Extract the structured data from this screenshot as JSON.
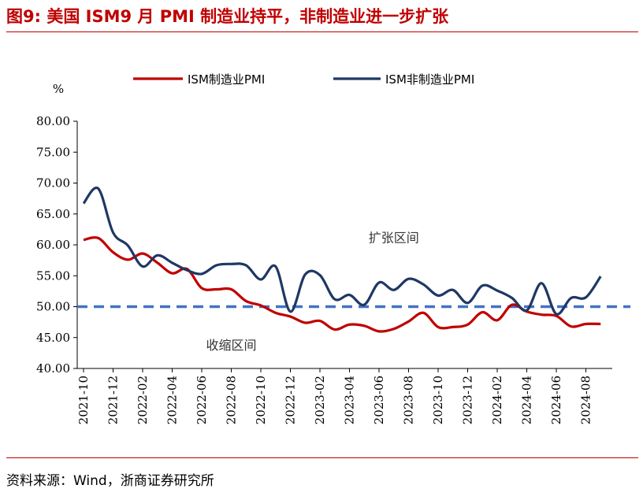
{
  "header": {
    "title": "图9:  美国 ISM9 月 PMI 制造业持平，非制造业进一步扩张"
  },
  "footer": {
    "source": "资料来源：Wind，浙商证券研究所"
  },
  "colors": {
    "title": "#c00000",
    "manufacturing": "#c00000",
    "non_manufacturing": "#1f3864",
    "threshold": "#4472c4"
  },
  "chart_data": {
    "type": "line",
    "title": "",
    "ylabel": "%",
    "xlabel": "",
    "ylim": [
      40,
      80
    ],
    "yticks": [
      "40.00",
      "45.00",
      "50.00",
      "55.00",
      "60.00",
      "65.00",
      "70.00",
      "75.00",
      "80.00"
    ],
    "x_tick_labels": [
      "2021-10",
      "2021-12",
      "2022-02",
      "2022-04",
      "2022-06",
      "2022-08",
      "2022-10",
      "2022-12",
      "2023-02",
      "2023-04",
      "2023-06",
      "2023-08",
      "2023-10",
      "2023-12",
      "2024-02",
      "2024-04",
      "2024-06",
      "2024-08"
    ],
    "x": [
      "2021-10",
      "2021-11",
      "2021-12",
      "2022-01",
      "2022-02",
      "2022-03",
      "2022-04",
      "2022-05",
      "2022-06",
      "2022-07",
      "2022-08",
      "2022-09",
      "2022-10",
      "2022-11",
      "2022-12",
      "2023-01",
      "2023-02",
      "2023-03",
      "2023-04",
      "2023-05",
      "2023-06",
      "2023-07",
      "2023-08",
      "2023-09",
      "2023-10",
      "2023-11",
      "2023-12",
      "2024-01",
      "2024-02",
      "2024-03",
      "2024-04",
      "2024-05",
      "2024-06",
      "2024-07",
      "2024-08",
      "2024-09"
    ],
    "series": [
      {
        "name": "ISM制造业PMI",
        "color": "#c00000",
        "values": [
          60.8,
          61.1,
          58.8,
          57.6,
          58.6,
          57.1,
          55.4,
          56.1,
          53.0,
          52.8,
          52.8,
          50.9,
          50.2,
          49.0,
          48.4,
          47.4,
          47.7,
          46.3,
          47.1,
          46.9,
          46.0,
          46.4,
          47.6,
          49.0,
          46.7,
          46.7,
          47.1,
          49.1,
          47.8,
          50.3,
          49.2,
          48.7,
          48.5,
          46.8,
          47.2,
          47.2
        ]
      },
      {
        "name": "ISM非制造业PMI",
        "color": "#1f3864",
        "values": [
          66.7,
          69.1,
          62.0,
          59.9,
          56.5,
          58.3,
          57.1,
          55.9,
          55.3,
          56.7,
          56.9,
          56.7,
          54.4,
          56.5,
          49.2,
          55.2,
          55.1,
          51.2,
          51.9,
          50.3,
          53.9,
          52.7,
          54.5,
          53.6,
          51.8,
          52.7,
          50.6,
          53.4,
          52.6,
          51.4,
          49.4,
          53.8,
          48.8,
          51.4,
          51.5,
          54.9
        ]
      }
    ],
    "reference_line": {
      "value": 50,
      "style": "dashed"
    },
    "annotations": [
      {
        "text": "扩张区间",
        "x": "2023-07",
        "y": 61.2
      },
      {
        "text": "收缩区间",
        "x": "2022-08",
        "y": 43.8
      }
    ],
    "legend_position": "top",
    "grid": false
  }
}
